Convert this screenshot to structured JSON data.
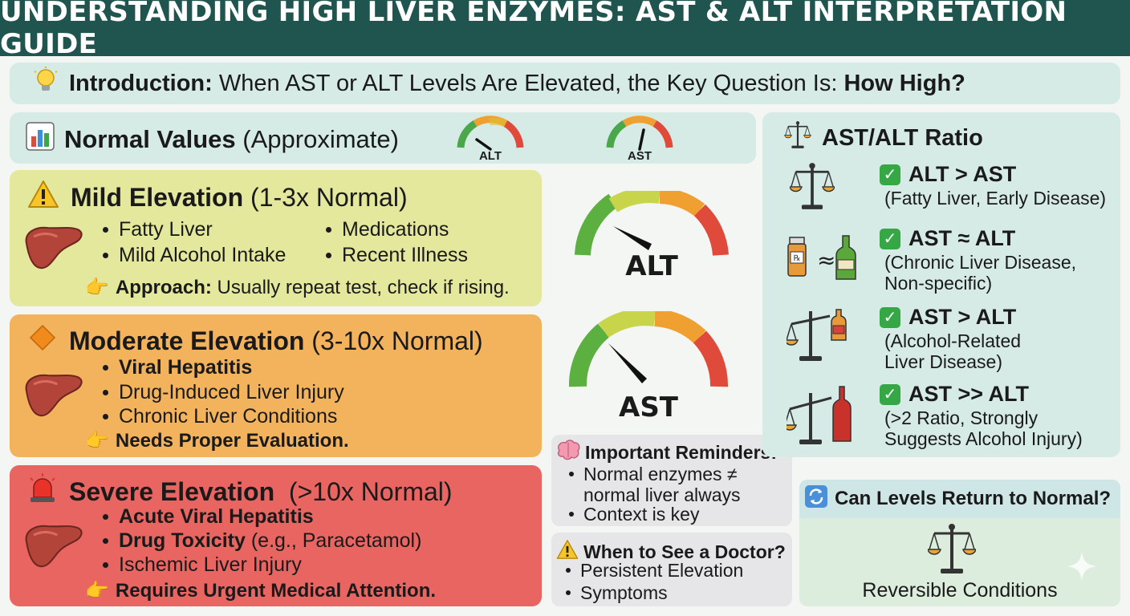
{
  "header": {
    "title": "UNDERSTANDING HIGH LIVER ENZYMES: AST & ALT INTERPRETATION GUIDE"
  },
  "intro": {
    "lead": "Introduction:",
    "text": " When AST or ALT Levels Are Elevated, the Key Question Is: ",
    "emphasis": "How High?",
    "icon": "lightbulb-icon"
  },
  "normal": {
    "label_bold": "Normal Values",
    "label_rest": " (Approximate)",
    "icon": "bar-chart-icon",
    "gauge_alt": "ALT",
    "gauge_ast": "AST"
  },
  "mild": {
    "icon": "warning-icon",
    "title_bold": "Mild Elevation",
    "title_rest": " (1-3x Normal)",
    "bullets": [
      "Fatty Liver",
      "Medications",
      "Mild Alcohol Intake",
      "Recent Illness"
    ],
    "approach_bold": "Approach:",
    "approach_rest": " Usually repeat test, check if rising."
  },
  "moderate": {
    "icon": "diamond-icon",
    "title_bold": "Moderate Elevation",
    "title_rest": " (3-10x Normal)",
    "bullets": [
      "Viral Hepatitis",
      "Drug-Induced Liver Injury",
      "Chronic Liver Conditions"
    ],
    "note": "Needs Proper Evaluation."
  },
  "severe": {
    "icon": "alarm-icon",
    "title_bold": "Severe Elevation",
    "title_rest": "  (>10x Normal)",
    "b1": "Acute Viral Hepatitis",
    "b2_bold": "Drug Toxicity",
    "b2_rest": " (e.g., Paracetamol)",
    "b3": "Ischemic Liver Injury",
    "note": "Requires Urgent Medical Attention."
  },
  "gauges": {
    "alt_label": "ALT",
    "ast_label": "AST"
  },
  "reminders": {
    "title": "Important Reminders:",
    "icon": "brain-icon",
    "items": [
      "Normal enzymes ≠ normal liver always",
      "Context is key"
    ]
  },
  "doctor": {
    "title": "When to See a Doctor?",
    "icon": "warning-icon",
    "items": [
      "Persistent Elevation",
      "Symptoms"
    ]
  },
  "ratio": {
    "title": "AST/ALT Ratio",
    "icon": "scale-icon",
    "items": [
      {
        "title": "ALT > AST",
        "sub": "(Fatty Liver, Early Disease)"
      },
      {
        "title": "AST ≈ ALT",
        "sub": "(Chronic Liver Disease, Non-specific)"
      },
      {
        "title": "AST > ALT",
        "sub": "(Alcohol-Related Liver Disease)"
      },
      {
        "title": "AST >> ALT",
        "sub": "(>2 Ratio, Strongly Suggests Alcohol Injury)"
      }
    ]
  },
  "return": {
    "title": "Can Levels Return to Normal?",
    "icon": "refresh-icon",
    "footer": "Reversible Conditions"
  },
  "colors": {
    "header": "#20554f",
    "panel": "#d6ebe6",
    "mild": "#e4e89c",
    "moderate": "#f3b35d",
    "severe": "#e96562",
    "check": "#35a845"
  }
}
